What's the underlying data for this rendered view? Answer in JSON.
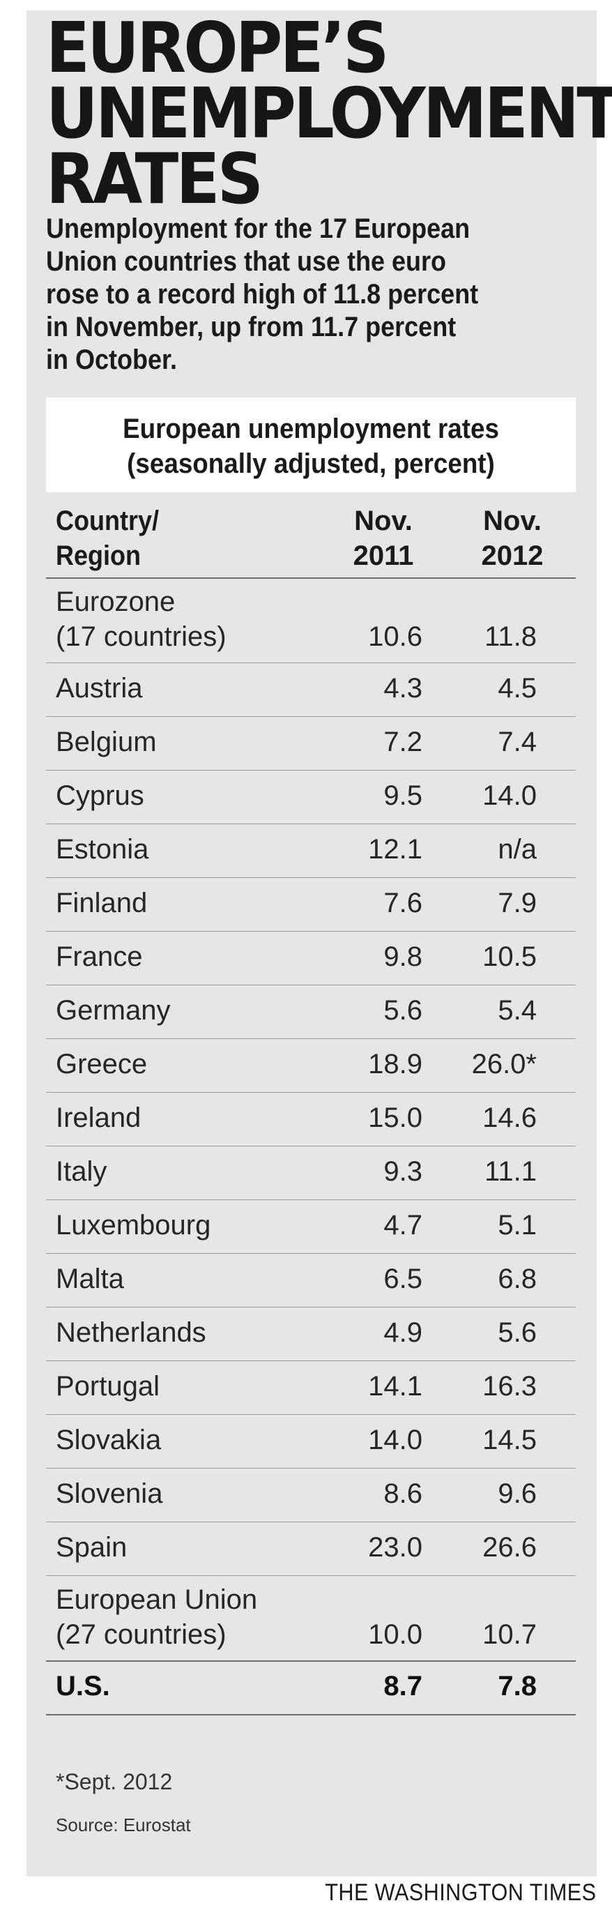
{
  "header": {
    "title_lines": [
      "EUROPE’S",
      "UNEMPLOYMENT",
      "RATES"
    ],
    "subtitle_lines": [
      "Unemployment for the 17 European",
      "Union countries that use the euro",
      "rose to a record high of 11.8 percent",
      "in November, up from 11.7 percent",
      "in October."
    ]
  },
  "table": {
    "title_lines": [
      "European unemployment rates",
      "(seasonally adjusted, percent)"
    ],
    "columns": {
      "country": [
        "Country/",
        "Region"
      ],
      "nov2011": [
        "Nov.",
        "2011"
      ],
      "nov2012": [
        "Nov.",
        "2012"
      ]
    }
  },
  "chart_data": {
    "type": "table",
    "title": "European unemployment rates (seasonally adjusted, percent)",
    "columns": [
      "Country/Region",
      "Nov. 2011",
      "Nov. 2012"
    ],
    "rows": [
      {
        "name": [
          "Eurozone",
          "(17 countries)"
        ],
        "v2011": "10.6",
        "v2012": "11.8"
      },
      {
        "name": [
          "Austria"
        ],
        "v2011": "4.3",
        "v2012": "4.5"
      },
      {
        "name": [
          "Belgium"
        ],
        "v2011": "7.2",
        "v2012": "7.4"
      },
      {
        "name": [
          "Cyprus"
        ],
        "v2011": "9.5",
        "v2012": "14.0"
      },
      {
        "name": [
          "Estonia"
        ],
        "v2011": "12.1",
        "v2012": "n/a"
      },
      {
        "name": [
          "Finland"
        ],
        "v2011": "7.6",
        "v2012": "7.9"
      },
      {
        "name": [
          "France"
        ],
        "v2011": "9.8",
        "v2012": "10.5"
      },
      {
        "name": [
          "Germany"
        ],
        "v2011": "5.6",
        "v2012": "5.4"
      },
      {
        "name": [
          "Greece"
        ],
        "v2011": "18.9",
        "v2012": "26.0*"
      },
      {
        "name": [
          "Ireland"
        ],
        "v2011": "15.0",
        "v2012": "14.6"
      },
      {
        "name": [
          "Italy"
        ],
        "v2011": "9.3",
        "v2012": "11.1"
      },
      {
        "name": [
          "Luxembourg"
        ],
        "v2011": "4.7",
        "v2012": "5.1"
      },
      {
        "name": [
          "Malta"
        ],
        "v2011": "6.5",
        "v2012": "6.8"
      },
      {
        "name": [
          "Netherlands"
        ],
        "v2011": "4.9",
        "v2012": "5.6"
      },
      {
        "name": [
          "Portugal"
        ],
        "v2011": "14.1",
        "v2012": "16.3"
      },
      {
        "name": [
          "Slovakia"
        ],
        "v2011": "14.0",
        "v2012": "14.5"
      },
      {
        "name": [
          "Slovenia"
        ],
        "v2011": "8.6",
        "v2012": "9.6"
      },
      {
        "name": [
          "Spain"
        ],
        "v2011": "23.0",
        "v2012": "26.6"
      },
      {
        "name": [
          "European Union",
          "(27 countries)"
        ],
        "v2011": "10.0",
        "v2012": "10.7"
      },
      {
        "name": [
          "U.S."
        ],
        "v2011": "8.7",
        "v2012": "7.8",
        "bold": true
      }
    ]
  },
  "footer": {
    "footnote": "*Sept. 2012",
    "source": "Source: Eurostat",
    "credit": "THE WASHINGTON TIMES"
  },
  "colors": {
    "panel": "#e6e6e6",
    "box": "#ffffff",
    "text": "#1a1a1a"
  }
}
